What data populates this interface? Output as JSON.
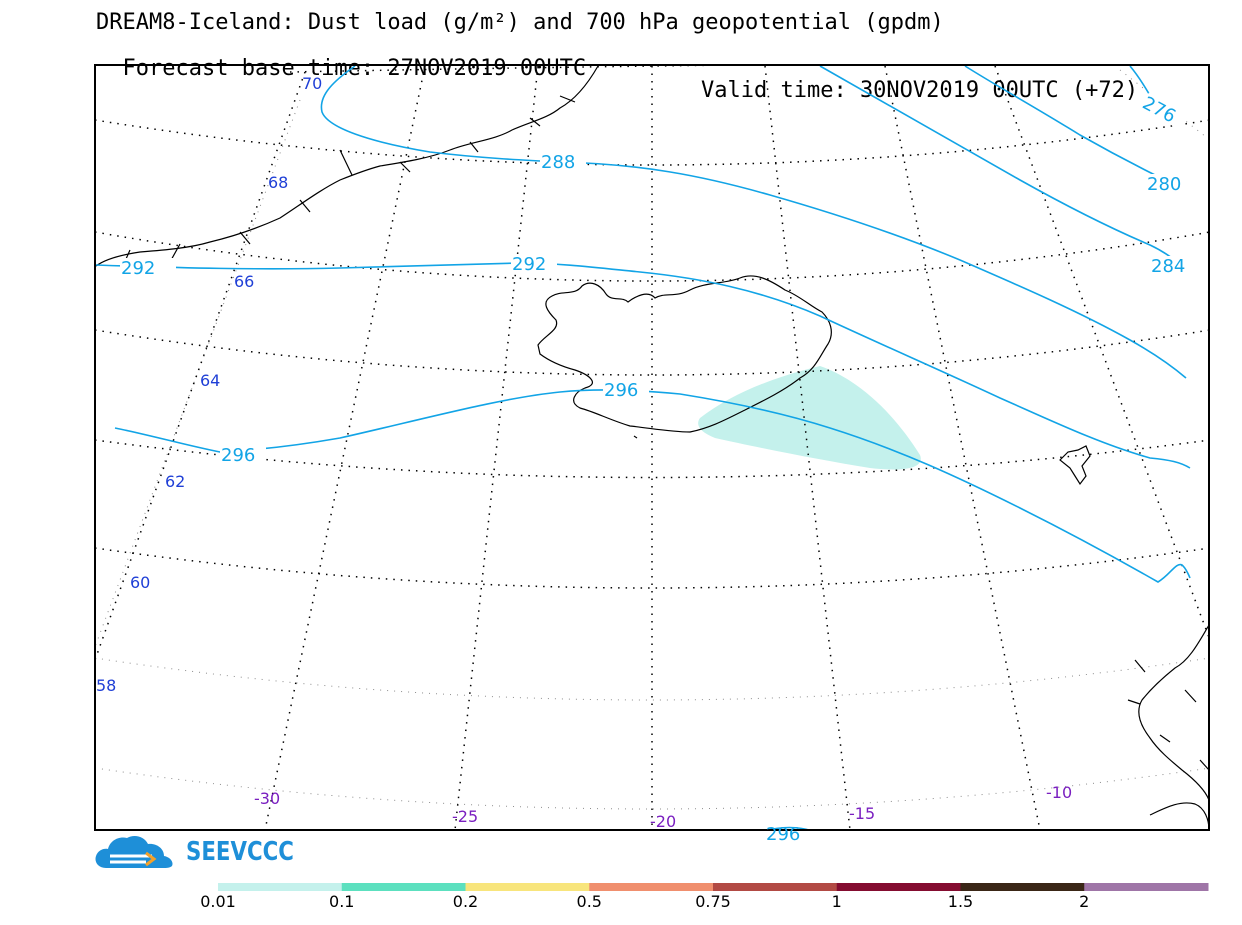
{
  "header": {
    "title_line1": "DREAM8-Iceland: Dust load (g/m²) and 700 hPa geopotential (gpdm)",
    "forecast_base": "Forecast base time: 27NOV2019 00UTC",
    "valid_time": "Valid time: 30NOV2019 00UTC (+72)"
  },
  "map": {
    "latitude_labels": [
      "70",
      "68",
      "66",
      "64",
      "62",
      "60",
      "58"
    ],
    "longitude_labels": [
      "-30",
      "-25",
      "-20",
      "-15",
      "-10"
    ],
    "isohypse_labels": [
      "276",
      "280",
      "284",
      "288",
      "292",
      "292",
      "296",
      "296",
      "296"
    ],
    "colors": {
      "isohypse": "#12a4e6",
      "latitude_label": "#1f3fd6",
      "longitude_label": "#7a1fc0",
      "dust_lowest": "#c4f1ec"
    }
  },
  "logo": {
    "text": "SEEVCCC",
    "icon": "cloud-logo-icon"
  },
  "color_scale": {
    "labels": [
      "0.01",
      "0.1",
      "0.2",
      "0.5",
      "0.75",
      "1",
      "1.5",
      "2"
    ],
    "colors": [
      "#c4f1ec",
      "#5ce0bf",
      "#f8e57c",
      "#f08f6e",
      "#b24a44",
      "#840c30",
      "#3a2616",
      "#9f75a7"
    ]
  }
}
